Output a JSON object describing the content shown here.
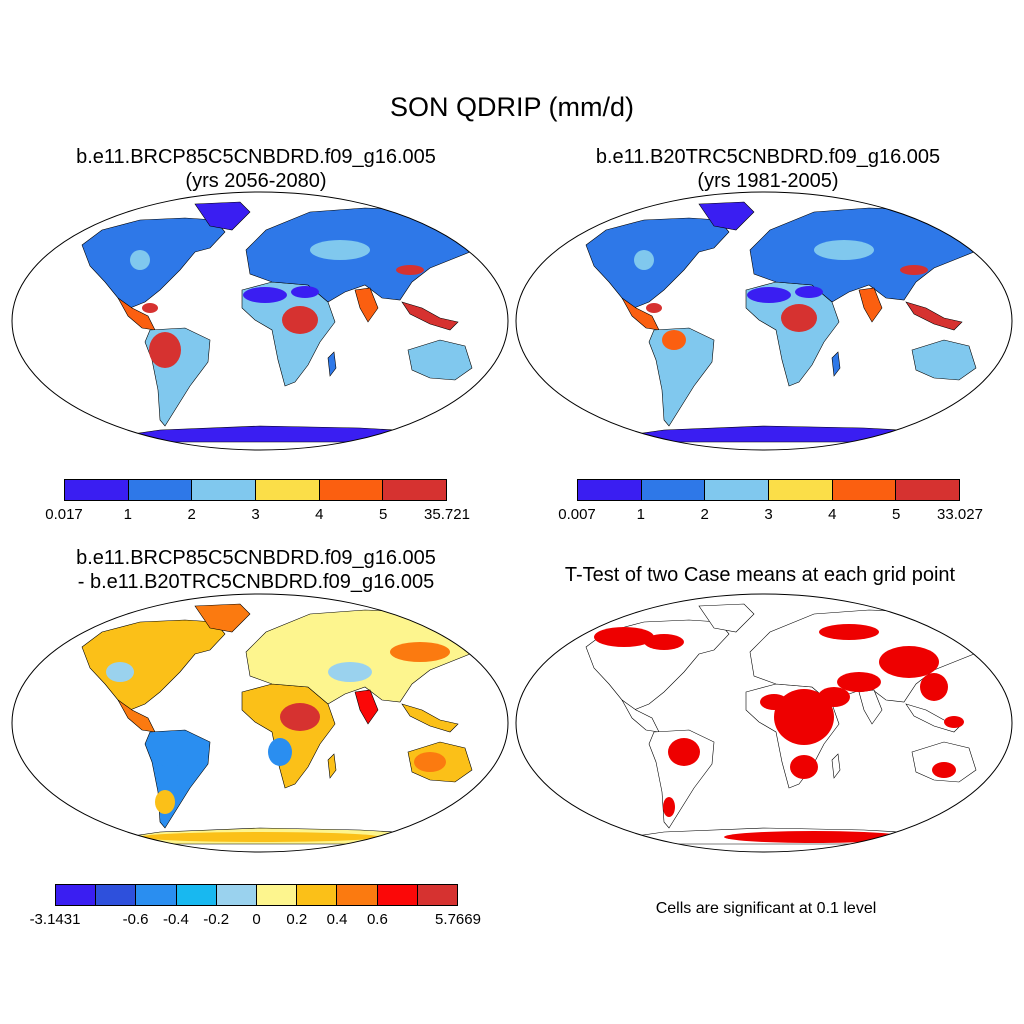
{
  "figure": {
    "title": "SON QDRIP (mm/d)"
  },
  "panels": [
    {
      "title_line1": "b.e11.BRCP85C5CNBDRD.f09_g16.005",
      "title_line2": "(yrs 2056-2080)",
      "colorbar": {
        "colors": [
          "#3a1ef2",
          "#2e78e8",
          "#80c8ee",
          "#fbde48",
          "#fb5f10",
          "#d63230"
        ],
        "ticks": [
          "0.017",
          "1",
          "2",
          "3",
          "4",
          "5",
          "35.721"
        ]
      }
    },
    {
      "title_line1": "b.e11.B20TRC5CNBDRD.f09_g16.005",
      "title_line2": "(yrs 1981-2005)",
      "colorbar": {
        "colors": [
          "#3a1ef2",
          "#2e78e8",
          "#80c8ee",
          "#fbde48",
          "#fb5f10",
          "#d63230"
        ],
        "ticks": [
          "0.007",
          "1",
          "2",
          "3",
          "4",
          "5",
          "33.027"
        ]
      }
    },
    {
      "title_line1": "b.e11.BRCP85C5CNBDRD.f09_g16.005",
      "title_line2": "- b.e11.B20TRC5CNBDRD.f09_g16.005",
      "colorbar": {
        "colors": [
          "#3a1ef2",
          "#2e50dc",
          "#2a8ef0",
          "#18b8f0",
          "#9ad2ee",
          "#fdf58e",
          "#fbc018",
          "#fb7a10",
          "#fb0808",
          "#d63230"
        ],
        "ticks": [
          "-3.1431",
          "",
          "-0.6",
          "-0.4",
          "-0.2",
          "0",
          "0.2",
          "0.4",
          "0.6",
          "",
          "5.7669"
        ]
      }
    },
    {
      "title_line1": "T-Test of two Case means at each grid point",
      "note": "Cells are significant at 0.1 level"
    }
  ],
  "map_style": {
    "ocean": "#ffffff",
    "outline": "#000000",
    "signif_color": "#ee0000"
  }
}
